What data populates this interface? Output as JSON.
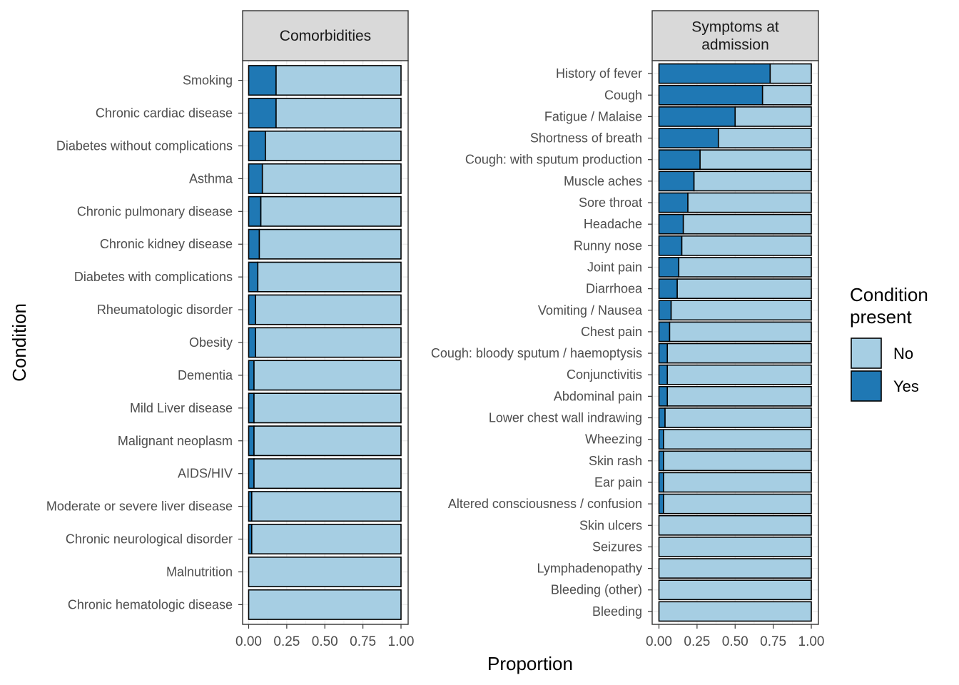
{
  "chart_data": {
    "type": "bar",
    "orientation": "horizontal",
    "stacked": true,
    "xlabel": "Proportion",
    "ylabel": "Condition",
    "xlim": [
      0,
      1
    ],
    "x_ticks": [
      "0.00",
      "0.25",
      "0.50",
      "0.75",
      "1.00"
    ],
    "grid": true,
    "legend": {
      "title_lines": [
        "Condition",
        "present"
      ],
      "position": "right",
      "entries": [
        {
          "label": "No",
          "color": "#a6cee3"
        },
        {
          "label": "Yes",
          "color": "#1f78b4"
        }
      ]
    },
    "panels": [
      {
        "strip_lines": [
          "Comorbidities"
        ],
        "categories": [
          "Smoking",
          "Chronic cardiac disease",
          "Diabetes without complications",
          "Asthma",
          "Chronic pulmonary disease",
          "Chronic kidney disease",
          "Diabetes with complications",
          "Rheumatologic disorder",
          "Obesity",
          "Dementia",
          "Mild Liver disease",
          "Malignant neoplasm",
          "AIDS/HIV",
          "Moderate or severe liver disease",
          "Chronic neurological disorder",
          "Malnutrition",
          "Chronic hematologic disease"
        ],
        "series": [
          {
            "name": "Yes",
            "values": [
              0.18,
              0.18,
              0.11,
              0.09,
              0.08,
              0.07,
              0.06,
              0.045,
              0.045,
              0.035,
              0.035,
              0.035,
              0.035,
              0.02,
              0.02,
              0.0,
              0.0
            ]
          },
          {
            "name": "No",
            "values": [
              0.82,
              0.82,
              0.89,
              0.91,
              0.92,
              0.93,
              0.94,
              0.955,
              0.955,
              0.965,
              0.965,
              0.965,
              0.965,
              0.98,
              0.98,
              1.0,
              1.0
            ]
          }
        ]
      },
      {
        "strip_lines": [
          "Symptoms at",
          "admission"
        ],
        "categories": [
          "History of fever",
          "Cough",
          "Fatigue / Malaise",
          "Shortness of breath",
          "Cough: with sputum production",
          "Muscle aches",
          "Sore throat",
          "Headache",
          "Runny nose",
          "Joint pain",
          "Diarrhoea",
          "Vomiting / Nausea",
          "Chest pain",
          "Cough: bloody sputum / haemoptysis",
          "Conjunctivitis",
          "Abdominal pain",
          "Lower chest wall indrawing",
          "Wheezing",
          "Skin rash",
          "Ear pain",
          "Altered consciousness / confusion",
          "Skin ulcers",
          "Seizures",
          "Lymphadenopathy",
          "Bleeding (other)",
          "Bleeding"
        ],
        "series": [
          {
            "name": "Yes",
            "values": [
              0.73,
              0.68,
              0.5,
              0.39,
              0.27,
              0.23,
              0.19,
              0.16,
              0.15,
              0.13,
              0.12,
              0.08,
              0.07,
              0.055,
              0.055,
              0.055,
              0.04,
              0.03,
              0.03,
              0.03,
              0.03,
              0.0,
              0.0,
              0.0,
              0.0,
              0.0
            ]
          },
          {
            "name": "No",
            "values": [
              0.27,
              0.32,
              0.5,
              0.61,
              0.73,
              0.77,
              0.81,
              0.84,
              0.85,
              0.87,
              0.88,
              0.92,
              0.93,
              0.945,
              0.945,
              0.945,
              0.96,
              0.97,
              0.97,
              0.97,
              0.97,
              1.0,
              1.0,
              1.0,
              1.0,
              1.0
            ]
          }
        ]
      }
    ]
  }
}
